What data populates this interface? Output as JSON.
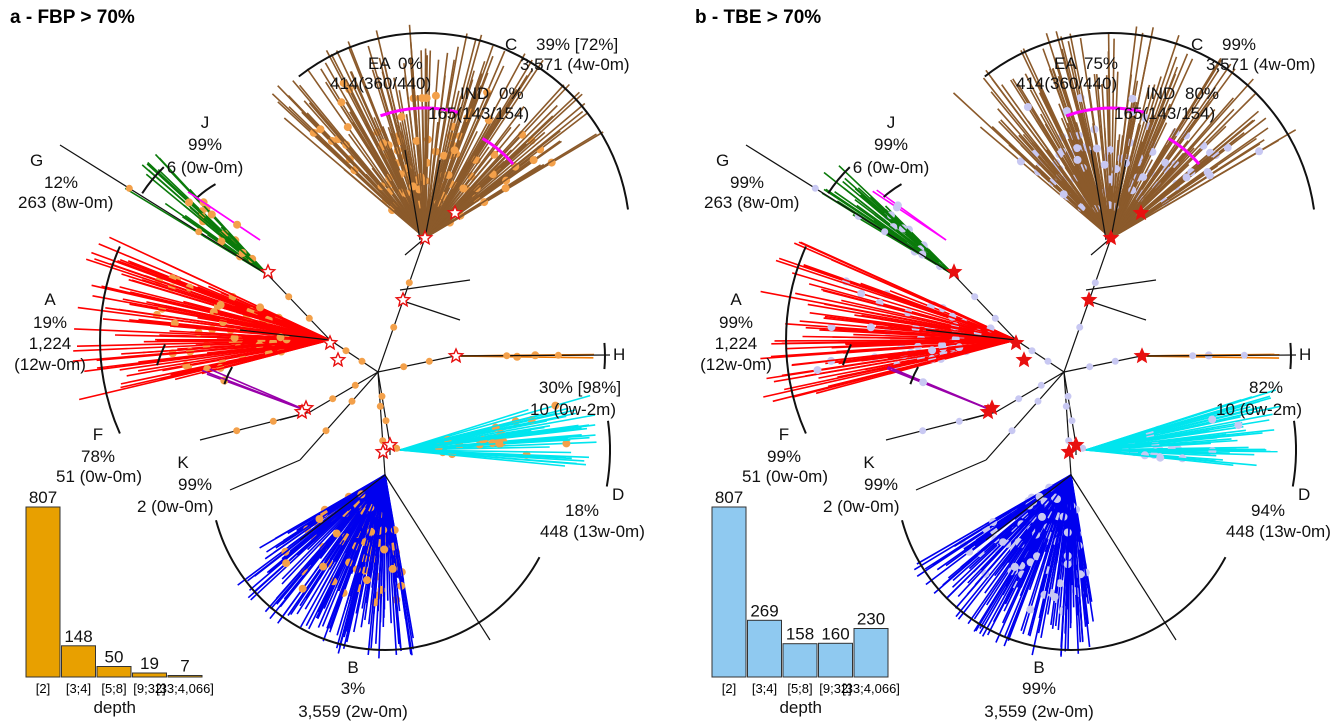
{
  "colors": {
    "fbp": "#E8A000",
    "tbe": "#8FC9F0",
    "fbp_text": "#E8A000",
    "tbe_text": "#7FC3EE",
    "clade_A": "#FF0000",
    "clade_B": "#0000EE",
    "clade_C": "#8B5A2B",
    "clade_D": "#00E5EE",
    "clade_G": "#0A7A0A",
    "clade_H": "#F07800",
    "clade_J": "#FF00FF",
    "clade_F": "#9900AA",
    "dot_fbp": "#F3A04A",
    "dot_tbe": "#C8C8F2",
    "star": "#E81010",
    "arc_sub": "#FF00FF"
  },
  "panels": [
    {
      "id": "a",
      "title": "a - FBP > 70%",
      "dot_color_key": "dot_fbp",
      "pct_color_key": "fbp_text",
      "stars_filled": false,
      "clades": [
        {
          "name": "A",
          "pct": "19%",
          "count": "1,224",
          "wm": "(12w-0m)"
        },
        {
          "name": "B",
          "pct": "3%",
          "line": "3,559 (2w-0m)"
        },
        {
          "name": "C",
          "pct": "39% [72%]",
          "line": "3,571 (4w-0m)"
        },
        {
          "name": "D",
          "pct": "18%",
          "line": "448 (13w-0m)"
        },
        {
          "name": "EA",
          "pct": "0%",
          "line": "414(360/440)"
        },
        {
          "name": "IND",
          "pct": "0%",
          "line": "165(143/154)"
        },
        {
          "name": "F",
          "pct": "78%",
          "line": "51 (0w-0m)"
        },
        {
          "name": "G",
          "pct": "12%",
          "line": "263 (8w-0m)"
        },
        {
          "name": "H",
          "pct": "30% [98%]",
          "line": "10 (0w-2m)"
        },
        {
          "name": "J",
          "pct": "99%",
          "line": "6 (0w-0m)"
        },
        {
          "name": "K",
          "pct": "99%",
          "line": "2 (0w-0m)"
        }
      ],
      "chart_data": {
        "type": "bar",
        "categories": [
          "[2]",
          "[3;4]",
          "[5;8]",
          "[9;32]",
          "[33;4,066]"
        ],
        "values": [
          807,
          148,
          50,
          19,
          7
        ],
        "xlabel": "depth",
        "ylabel": "",
        "ylim": [
          0,
          807
        ]
      }
    },
    {
      "id": "b",
      "title": "b - TBE > 70%",
      "dot_color_key": "dot_tbe",
      "pct_color_key": "tbe_text",
      "stars_filled": true,
      "clades": [
        {
          "name": "A",
          "pct": "99%",
          "count": "1,224",
          "wm": "(12w-0m)"
        },
        {
          "name": "B",
          "pct": "99%",
          "line": "3,559 (2w-0m)"
        },
        {
          "name": "C",
          "pct": "99%",
          "line": "3,571 (4w-0m)"
        },
        {
          "name": "D",
          "pct": "94%",
          "line": "448 (13w-0m)"
        },
        {
          "name": "EA",
          "pct": "75%",
          "line": "414(360/440)"
        },
        {
          "name": "IND",
          "pct": "80%",
          "line": "165(143/154)"
        },
        {
          "name": "F",
          "pct": "99%",
          "line": "51 (0w-0m)"
        },
        {
          "name": "G",
          "pct": "99%",
          "line": "263 (8w-0m)"
        },
        {
          "name": "H",
          "pct": "82%",
          "line": "10 (0w-2m)"
        },
        {
          "name": "J",
          "pct": "99%",
          "line": "6 (0w-0m)"
        },
        {
          "name": "K",
          "pct": "99%",
          "line": "2 (0w-0m)"
        }
      ],
      "chart_data": {
        "type": "bar",
        "categories": [
          "[2]",
          "[3;4]",
          "[5;8]",
          "[9;32]",
          "[33;4,066]"
        ],
        "values": [
          807,
          269,
          158,
          160,
          230
        ],
        "xlabel": "depth",
        "ylabel": "",
        "ylim": [
          0,
          807
        ]
      }
    }
  ]
}
